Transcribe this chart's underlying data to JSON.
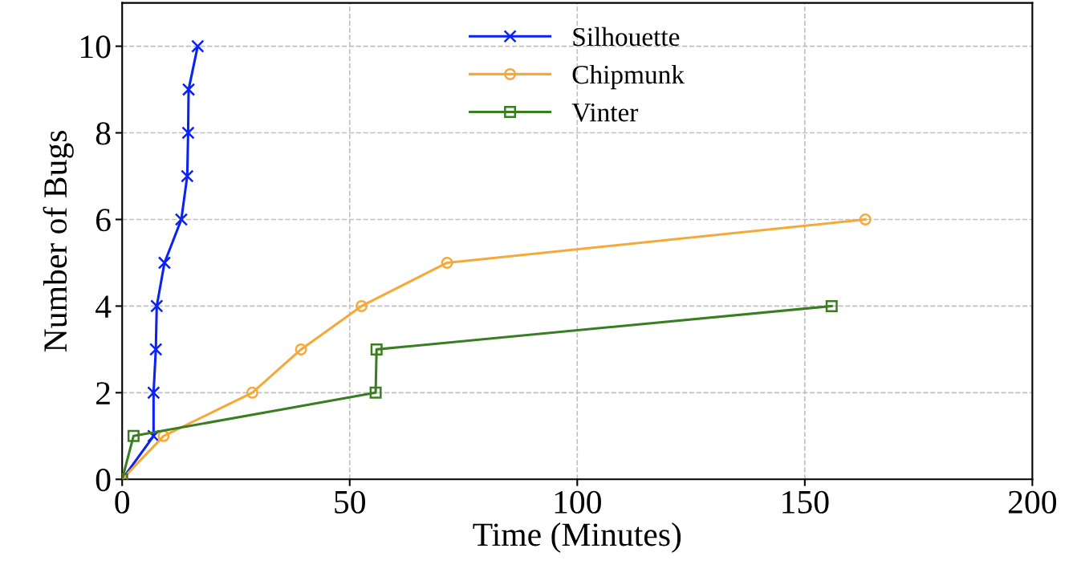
{
  "chart_data": {
    "type": "line",
    "xlabel": "Time (Minutes)",
    "ylabel": "Number of Bugs",
    "xlim": [
      0,
      200
    ],
    "xticks": [
      0,
      50,
      100,
      150,
      200
    ],
    "ylim": [
      0,
      11
    ],
    "yticks": [
      0,
      2,
      4,
      6,
      8,
      10
    ],
    "grid": true,
    "legend": "top",
    "line_style": "solid",
    "series": [
      {
        "name": "Silhouette",
        "color": "#0a22f5",
        "marker": "cross",
        "x": [
          0,
          6.9,
          6.9,
          7.4,
          7.6,
          9.3,
          13.0,
          14.3,
          14.5,
          14.6,
          16.6
        ],
        "values": [
          0,
          1,
          2,
          3,
          4,
          5,
          6,
          7,
          8,
          9,
          10
        ]
      },
      {
        "name": "Chipmunk",
        "color": "#f5a93a",
        "marker": "circle",
        "x": [
          0,
          9.1,
          28.6,
          39.3,
          52.6,
          71.4,
          163.3
        ],
        "values": [
          0,
          1,
          2,
          3,
          4,
          5,
          6
        ]
      },
      {
        "name": "Vinter",
        "color": "#3a7d22",
        "marker": "square",
        "x": [
          0,
          2.5,
          55.7,
          55.9,
          155.9
        ],
        "values": [
          0,
          1,
          2,
          3,
          4
        ]
      }
    ]
  }
}
